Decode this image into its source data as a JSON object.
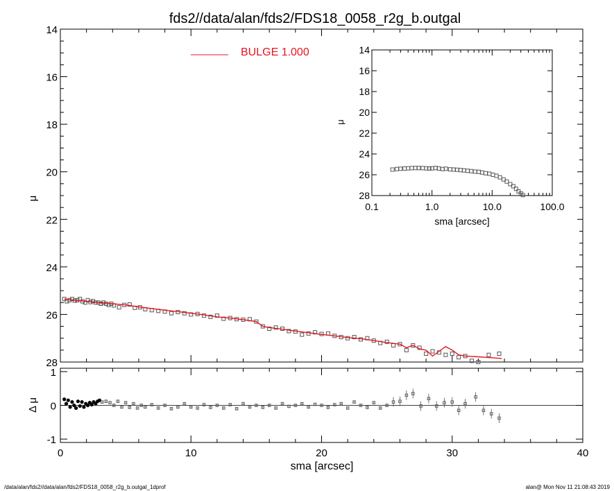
{
  "title": "fds2//data/alan/fds2/FDS18_0058_r2g_b.outgal",
  "footer": {
    "left": "/data/alan/fds2//data/alan/fds2/FDS18_0058_r2g_b.outgal_1dprof",
    "right": "alan@  Mon Nov 11 21:08:43 2019"
  },
  "colors": {
    "model": "#e8141e",
    "data": "#555555",
    "axis": "#000000"
  },
  "chart_data": [
    {
      "id": "main",
      "type": "scatter",
      "xlabel": "",
      "ylabel": "μ",
      "xlim": [
        0,
        40
      ],
      "ylim": [
        28,
        14
      ],
      "y_inverted": true,
      "y_ticks": [
        "14",
        "16",
        "18",
        "20",
        "22",
        "24",
        "26",
        "28"
      ],
      "legend": {
        "text": "BULGE  1.000",
        "placement": "top-center"
      },
      "series": [
        {
          "kind": "points",
          "x": [
            0.3,
            0.5,
            0.7,
            0.9,
            1.1,
            1.3,
            1.5,
            1.7,
            1.9,
            2.1,
            2.3,
            2.5,
            2.7,
            2.9,
            3.1,
            3.3,
            3.5,
            3.7,
            3.9,
            4.1,
            4.5,
            4.9,
            5.3,
            5.7,
            6.1,
            6.5,
            7.0,
            7.5,
            8.0,
            8.5,
            9.0,
            9.5,
            10.0,
            10.5,
            11.0,
            11.5,
            12.0,
            12.5,
            13.0,
            13.5,
            14.0,
            14.5,
            15.0,
            15.5,
            16.0,
            16.5,
            17.0,
            17.5,
            18.0,
            18.5,
            19.0,
            19.5,
            20.0,
            20.5,
            21.0,
            21.5,
            22.0,
            22.5,
            23.0,
            23.5,
            24.0,
            24.5,
            25.0,
            25.5,
            26.0,
            26.5,
            27.0,
            27.5,
            28.0,
            28.5,
            29.0,
            29.5,
            30.0,
            30.5,
            31.0,
            31.5,
            32.0,
            32.8,
            33.6
          ],
          "y": [
            25.35,
            25.45,
            25.4,
            25.35,
            25.42,
            25.4,
            25.35,
            25.45,
            25.5,
            25.4,
            25.48,
            25.44,
            25.5,
            25.5,
            25.55,
            25.5,
            25.55,
            25.6,
            25.55,
            25.62,
            25.7,
            25.6,
            25.58,
            25.72,
            25.7,
            25.78,
            25.82,
            25.85,
            25.88,
            25.95,
            25.9,
            25.95,
            26.0,
            25.98,
            26.05,
            26.1,
            26.05,
            26.18,
            26.15,
            26.2,
            26.22,
            26.2,
            26.3,
            26.5,
            26.6,
            26.55,
            26.6,
            26.7,
            26.72,
            26.85,
            26.8,
            26.75,
            26.82,
            26.8,
            26.9,
            26.95,
            27.0,
            26.95,
            27.05,
            27.0,
            27.1,
            27.2,
            27.15,
            27.3,
            27.25,
            27.5,
            27.3,
            27.4,
            27.65,
            27.55,
            27.6,
            27.7,
            27.65,
            27.8,
            27.75,
            27.95,
            28.0,
            27.7,
            27.65
          ]
        },
        {
          "kind": "model",
          "name": "BULGE  1.000",
          "x": [
            0.3,
            1,
            2,
            3,
            4,
            5,
            6,
            7,
            8,
            9,
            10,
            11,
            12,
            13,
            14,
            15,
            15.5,
            16,
            17,
            18,
            19,
            20,
            21,
            22,
            23,
            24,
            25,
            26,
            26.5,
            27,
            27.5,
            28,
            28.5,
            29,
            29.5,
            30,
            30.5,
            31,
            32,
            33,
            33.8
          ],
          "y": [
            25.35,
            25.4,
            25.45,
            25.5,
            25.55,
            25.6,
            25.68,
            25.75,
            25.82,
            25.88,
            25.95,
            26.02,
            26.1,
            26.15,
            26.22,
            26.3,
            26.5,
            26.55,
            26.62,
            26.7,
            26.77,
            26.84,
            26.9,
            26.97,
            27.02,
            27.1,
            27.18,
            27.25,
            27.4,
            27.3,
            27.45,
            27.5,
            27.75,
            27.55,
            27.35,
            27.5,
            27.7,
            27.75,
            27.78,
            27.82,
            27.85
          ]
        }
      ]
    },
    {
      "id": "residual",
      "type": "scatter",
      "xlabel": "sma [arcsec]",
      "ylabel": "Δ μ",
      "xlim": [
        0,
        40
      ],
      "ylim": [
        -1.1,
        1.1
      ],
      "x_ticks": [
        "0",
        "10",
        "20",
        "30",
        "40"
      ],
      "y_ticks": [
        "1",
        "0",
        "-1"
      ],
      "series": [
        {
          "kind": "points",
          "x": [
            0.3,
            0.45,
            0.6,
            0.75,
            0.9,
            1.05,
            1.2,
            1.35,
            1.5,
            1.65,
            1.8,
            1.95,
            2.1,
            2.25,
            2.4,
            2.55,
            2.7,
            2.85,
            3.0,
            3.2,
            3.5,
            3.8,
            4.1,
            4.4,
            4.7,
            5.0,
            5.3,
            5.6,
            5.9,
            6.2,
            6.5,
            7.0,
            7.5,
            8.0,
            8.5,
            9.0,
            9.5,
            10.0,
            10.5,
            11.0,
            11.5,
            12.0,
            12.5,
            13.0,
            13.5,
            14.0,
            14.5,
            15.0,
            15.5,
            16.0,
            16.5,
            17.0,
            17.5,
            18.0,
            18.5,
            19.0,
            19.5,
            20.0,
            20.5,
            21.0,
            21.5,
            22.0,
            22.5,
            23.0,
            23.5,
            24.0,
            24.5,
            25.0,
            25.5,
            26.0,
            26.5,
            27.0,
            27.6,
            28.2,
            28.8,
            29.4,
            30.0,
            30.5,
            31.0,
            31.8,
            32.4,
            33.0,
            33.6
          ],
          "y": [
            0.18,
            0.05,
            0.15,
            -0.05,
            0.1,
            0.0,
            -0.08,
            0.12,
            -0.02,
            0.1,
            -0.05,
            0.05,
            0.0,
            0.08,
            0.02,
            0.1,
            0.05,
            0.12,
            0.15,
            0.1,
            0.12,
            0.08,
            0.0,
            0.12,
            -0.05,
            0.08,
            -0.06,
            0.05,
            -0.08,
            0.0,
            -0.05,
            0.02,
            -0.08,
            0.0,
            -0.1,
            -0.05,
            0.05,
            -0.05,
            -0.08,
            0.02,
            -0.06,
            0.0,
            -0.08,
            0.02,
            -0.1,
            0.05,
            -0.05,
            0.0,
            -0.06,
            0.0,
            -0.08,
            0.05,
            -0.03,
            0.0,
            0.05,
            -0.05,
            0.03,
            0.0,
            -0.06,
            0.02,
            0.05,
            -0.08,
            0.1,
            0.0,
            -0.06,
            0.08,
            -0.08,
            0.0,
            0.1,
            0.12,
            0.3,
            0.35,
            -0.02,
            0.2,
            -0.02,
            0.08,
            0.1,
            -0.15,
            0.05,
            0.25,
            -0.15,
            -0.25,
            -0.38
          ]
        },
        {
          "kind": "zero-line",
          "y": 0
        }
      ]
    },
    {
      "id": "inset",
      "type": "scatter",
      "xlabel": "sma [arcsec]",
      "ylabel": "μ",
      "xscale": "log",
      "xlim": [
        0.1,
        100
      ],
      "ylim": [
        28,
        14
      ],
      "y_inverted": true,
      "x_ticks": [
        "0.1",
        "1.0",
        "10.0",
        "100.0"
      ],
      "y_ticks": [
        "14",
        "16",
        "18",
        "20",
        "22",
        "24",
        "26",
        "28"
      ],
      "series": [
        {
          "kind": "points",
          "x": [
            0.22,
            0.26,
            0.3,
            0.35,
            0.4,
            0.46,
            0.53,
            0.6,
            0.7,
            0.8,
            0.9,
            1.0,
            1.15,
            1.3,
            1.5,
            1.7,
            2.0,
            2.3,
            2.6,
            3.0,
            3.4,
            3.9,
            4.5,
            5.2,
            6.0,
            6.8,
            7.8,
            9.0,
            10.3,
            11.8,
            13.5,
            15.5,
            17.5,
            20.0,
            22.5,
            25.0,
            27.5,
            30.0,
            32.5
          ],
          "y": [
            25.5,
            25.45,
            25.42,
            25.4,
            25.38,
            25.36,
            25.35,
            25.35,
            25.36,
            25.38,
            25.4,
            25.38,
            25.35,
            25.4,
            25.45,
            25.42,
            25.48,
            25.5,
            25.52,
            25.55,
            25.58,
            25.62,
            25.65,
            25.7,
            25.72,
            25.78,
            25.85,
            25.9,
            26.0,
            26.1,
            26.25,
            26.45,
            26.65,
            26.9,
            27.1,
            27.35,
            27.6,
            27.8,
            27.95
          ]
        }
      ]
    }
  ]
}
